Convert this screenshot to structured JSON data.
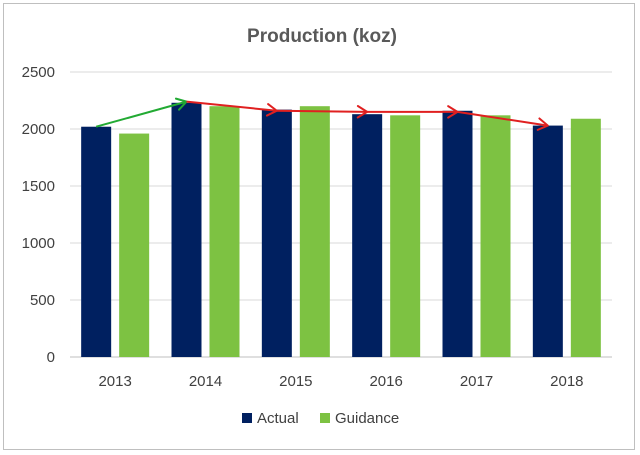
{
  "chart_data": {
    "type": "bar",
    "title": "Production (koz)",
    "xlabel": "",
    "ylabel": "",
    "categories": [
      "2013",
      "2014",
      "2015",
      "2016",
      "2017",
      "2018"
    ],
    "series": [
      {
        "name": "Actual",
        "color": "#002060",
        "values": [
          2020,
          2230,
          2170,
          2130,
          2160,
          2030
        ]
      },
      {
        "name": "Guidance",
        "color": "#7dc242",
        "values": [
          1960,
          2200,
          2200,
          2120,
          2120,
          2090
        ]
      }
    ],
    "ylim": [
      0,
      2500
    ],
    "yticks": [
      0,
      500,
      1000,
      1500,
      2000,
      2500
    ],
    "grid": true,
    "legend_position": "bottom",
    "annotations": [
      {
        "type": "arrow",
        "color": "#22aa33",
        "from": {
          "category": "2013",
          "value": 2020
        },
        "to": {
          "category": "2014",
          "value": 2240
        }
      },
      {
        "type": "arrow",
        "color": "#e02020",
        "from": {
          "category": "2014",
          "value": 2240
        },
        "to": {
          "category": "2015",
          "value": 2160
        }
      },
      {
        "type": "arrow",
        "color": "#e02020",
        "from": {
          "category": "2015",
          "value": 2160
        },
        "to": {
          "category": "2016",
          "value": 2150
        }
      },
      {
        "type": "arrow",
        "color": "#e02020",
        "from": {
          "category": "2016",
          "value": 2150
        },
        "to": {
          "category": "2017",
          "value": 2150
        }
      },
      {
        "type": "arrow",
        "color": "#e02020",
        "from": {
          "category": "2017",
          "value": 2150
        },
        "to": {
          "category": "2018",
          "value": 2030
        }
      }
    ]
  }
}
